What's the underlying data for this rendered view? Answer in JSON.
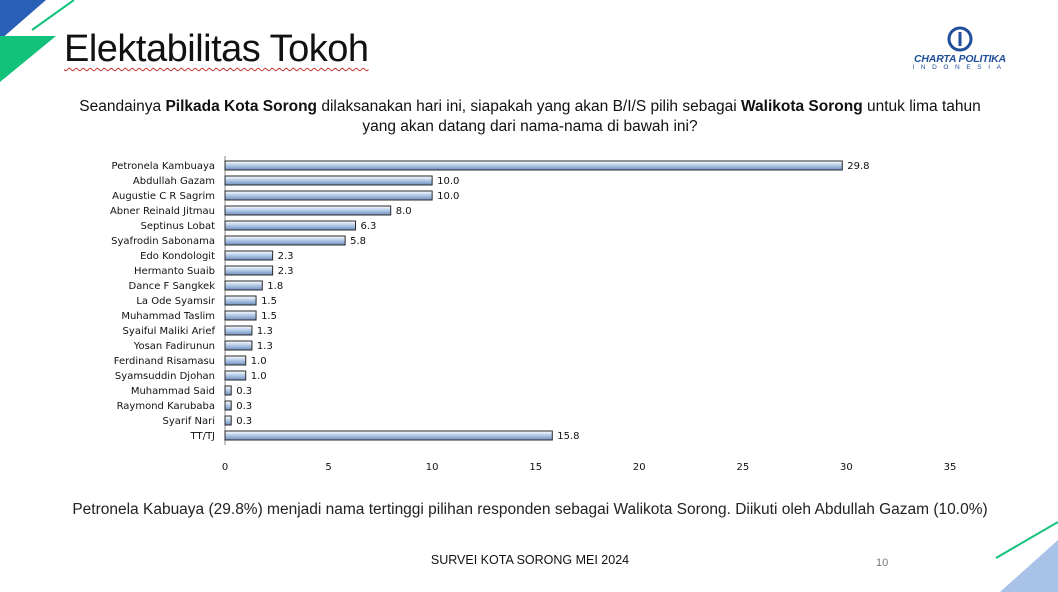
{
  "slide": {
    "title": "Elektabilitas Tokoh",
    "logo_name": "CHARTA POLITIKA",
    "logo_sub": "INDONESIA",
    "question_parts": {
      "p1": "Seandainya ",
      "b1": "Pilkada Kota Sorong",
      "p2": " dilaksanakan hari ini, siapakah yang akan B/I/S pilih sebagai ",
      "b2": "Walikota Sorong",
      "p3": " untuk lima tahun yang akan datang dari nama-nama di bawah ini?"
    },
    "summary": "Petronela Kabuaya (29.8%) menjadi nama tertinggi pilihan responden sebagai Walikota Sorong. Diikuti oleh Abdullah Gazam (10.0%)",
    "footer": "SURVEI KOTA SORONG MEI 2024",
    "page_number": "10"
  },
  "colors": {
    "bar_top": "#ffffff",
    "bar_mid": "#b7cde9",
    "bar_bottom": "#6f8fbf",
    "bar_stroke": "#2a2a2a",
    "accent_green": "#12c27a",
    "accent_blue": "#2a5fb8",
    "accent_light_blue": "#a9c2e8"
  },
  "chart_data": {
    "type": "bar",
    "orientation": "horizontal",
    "categories": [
      "Petronela Kambuaya",
      "Abdullah Gazam",
      "Augustie C R Sagrim",
      "Abner Reinald Jitmau",
      "Septinus Lobat",
      "Syafrodin Sabonama",
      "Edo Kondologit",
      "Hermanto Suaib",
      "Dance F Sangkek",
      "La Ode Syamsir",
      "Muhammad Taslim",
      "Syaiful Maliki Arief",
      "Yosan Fadirunun",
      "Ferdinand Risamasu",
      "Syamsuddin Djohan",
      "Muhammad Said",
      "Raymond Karubaba",
      "Syarif Nari",
      "TT/TJ"
    ],
    "values": [
      29.8,
      10.0,
      10.0,
      8.0,
      6.3,
      5.8,
      2.3,
      2.3,
      1.8,
      1.5,
      1.5,
      1.3,
      1.3,
      1.0,
      1.0,
      0.3,
      0.3,
      0.3,
      15.8
    ],
    "labels": [
      "29.8",
      "10.0",
      "10.0",
      "8.0",
      "6.3",
      "5.8",
      "2.3",
      "2.3",
      "1.8",
      "1.5",
      "1.5",
      "1.3",
      "1.3",
      "1.0",
      "1.0",
      "0.3",
      "0.3",
      "0.3",
      "15.8"
    ],
    "xlim": [
      0,
      35
    ],
    "xticks": [
      0,
      5,
      10,
      15,
      20,
      25,
      30,
      35
    ],
    "xtick_labels": [
      "0",
      "5",
      "10",
      "15",
      "20",
      "25",
      "30",
      "35"
    ],
    "title": "",
    "xlabel": "",
    "ylabel": "",
    "grid": false,
    "legend": "none"
  }
}
